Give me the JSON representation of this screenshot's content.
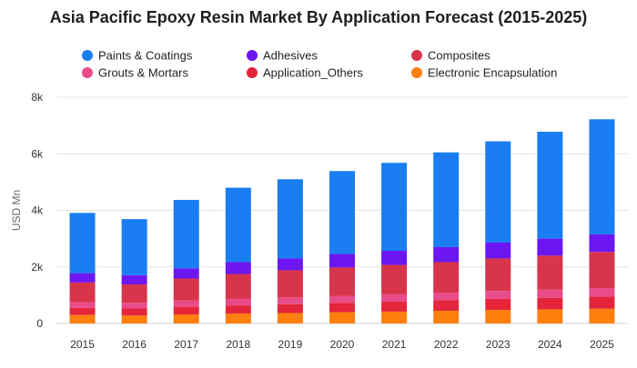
{
  "chart_data": {
    "type": "bar",
    "stacked": true,
    "title": "Asia Pacific Epoxy Resin Market By Application Forecast (2015-2025)",
    "xlabel": "",
    "ylabel": "USD Mn",
    "ylim": [
      0,
      8000
    ],
    "y_ticks": [
      0,
      2000,
      4000,
      6000,
      8000
    ],
    "y_tick_labels": [
      "0",
      "2k",
      "4k",
      "6k",
      "8k"
    ],
    "grid": true,
    "legend_position": "top",
    "categories": [
      "2015",
      "2016",
      "2017",
      "2018",
      "2019",
      "2020",
      "2021",
      "2022",
      "2023",
      "2024",
      "2025"
    ],
    "series": [
      {
        "name": "Electronic Encapsulation",
        "color": "#ff7f0e",
        "values": [
          300,
          280,
          320,
          350,
          370,
          400,
          420,
          450,
          480,
          500,
          520
        ]
      },
      {
        "name": "Application_Others",
        "color": "#e5253b",
        "values": [
          250,
          250,
          270,
          290,
          310,
          330,
          350,
          370,
          390,
          410,
          430
        ]
      },
      {
        "name": "Grouts & Mortars",
        "color": "#e84c8a",
        "values": [
          200,
          200,
          220,
          230,
          240,
          250,
          260,
          270,
          280,
          290,
          300
        ]
      },
      {
        "name": "Composites",
        "color": "#d8344a",
        "values": [
          700,
          650,
          780,
          880,
          960,
          1000,
          1040,
          1080,
          1150,
          1200,
          1280
        ]
      },
      {
        "name": "Adhesives",
        "color": "#6c17f2",
        "values": [
          330,
          330,
          360,
          420,
          420,
          480,
          500,
          530,
          560,
          600,
          620
        ]
      },
      {
        "name": "Paints & Coatings",
        "color": "#1a7df2",
        "values": [
          2130,
          1980,
          2420,
          2630,
          2800,
          2930,
          3110,
          3350,
          3580,
          3780,
          4070
        ]
      }
    ],
    "legend_order": [
      "Paints & Coatings",
      "Adhesives",
      "Composites",
      "Grouts & Mortars",
      "Application_Others",
      "Electronic Encapsulation"
    ]
  }
}
